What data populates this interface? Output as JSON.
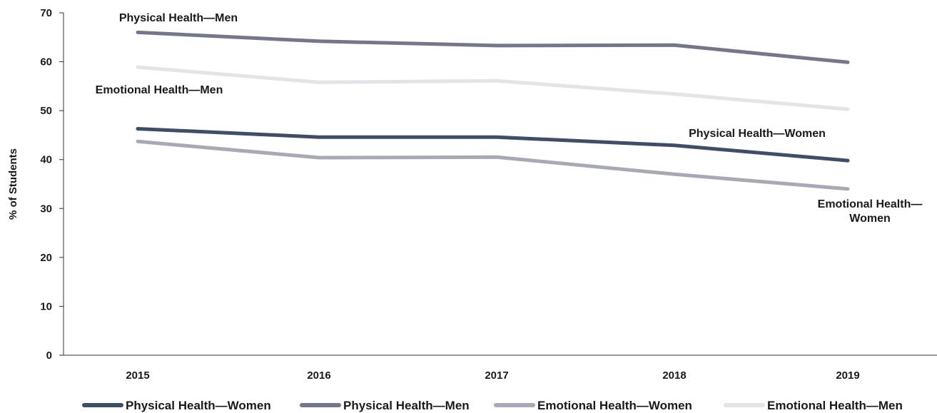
{
  "chart_data": {
    "type": "line",
    "ylabel": "% of Students",
    "ylim": [
      0,
      70
    ],
    "yticks": [
      "0",
      "10",
      "20",
      "30",
      "40",
      "50",
      "60",
      "70"
    ],
    "categories": [
      "2015",
      "2016",
      "2017",
      "2018",
      "2019"
    ],
    "grid": false,
    "legend_position": "bottom",
    "series": [
      {
        "name": "Physical Health—Women",
        "color": "#3f4d68",
        "values": [
          46.3,
          44.6,
          44.6,
          42.9,
          39.8
        ]
      },
      {
        "name": "Physical Health—Men",
        "color": "#74778b",
        "values": [
          66.0,
          64.2,
          63.3,
          63.4,
          59.9
        ]
      },
      {
        "name": "Emotional Health—Women",
        "color": "#a8a9b7",
        "values": [
          43.7,
          40.4,
          40.5,
          37.0,
          34.0
        ]
      },
      {
        "name": "Emotional Health—Men",
        "color": "#e3e3e8",
        "values": [
          58.9,
          55.8,
          56.1,
          53.4,
          50.3
        ]
      }
    ],
    "annotations": [
      {
        "text": "Physical Health—Men"
      },
      {
        "text": "Emotional Health—Men"
      },
      {
        "text": "Physical Health—Women"
      },
      {
        "text": "Emotional Health—",
        "text2": "Women"
      }
    ]
  }
}
